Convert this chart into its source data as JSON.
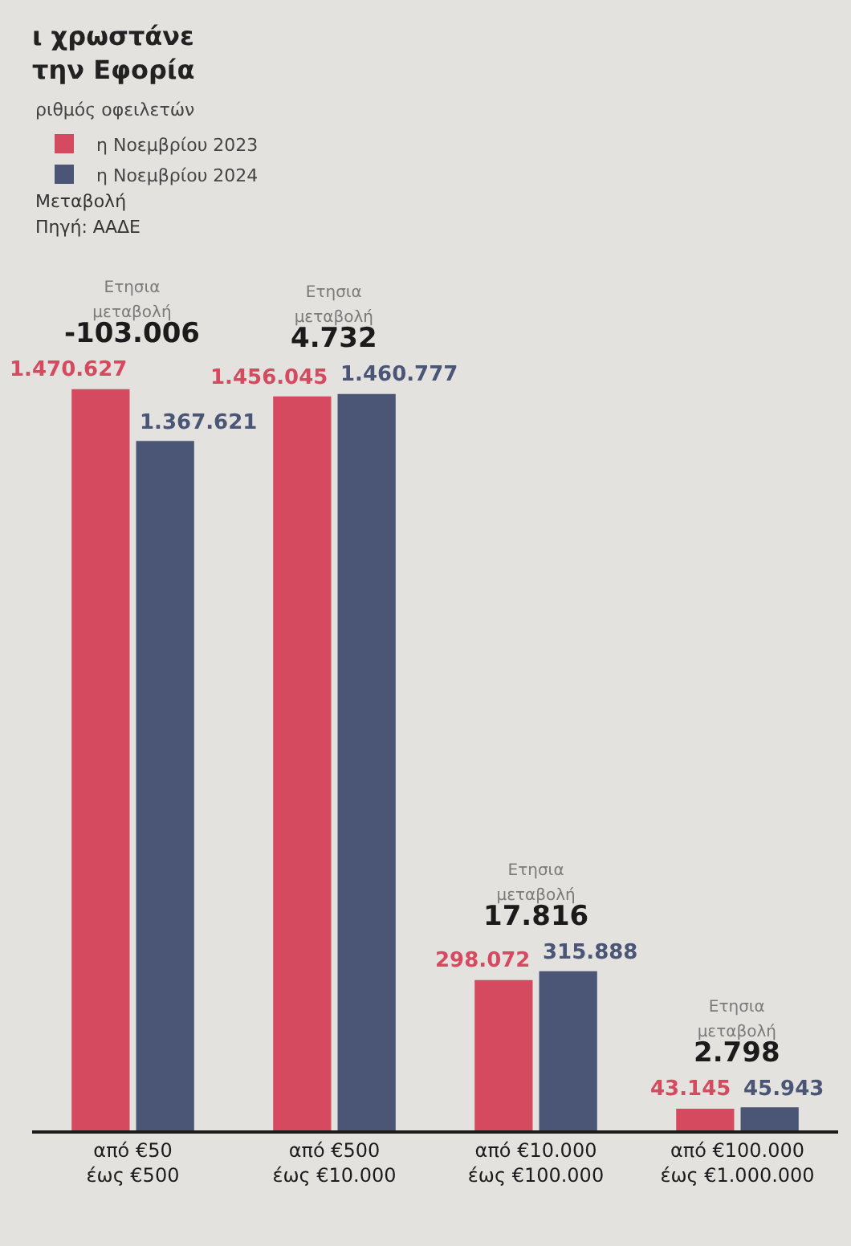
{
  "chart_data": {
    "type": "bar",
    "title": "ι χρωστάνε\nτην Εφορία",
    "subtitle": "ριθμός οφειλετών",
    "categories": [
      "από €50\nέως €500",
      "από €500\nέως €10.000",
      "από €10.000\nέως €100.000",
      "από €100.000\nέως €1.000.000"
    ],
    "series": [
      {
        "name": "η Νοεμβρίου 2023",
        "color": "#d64a5f",
        "values": [
          1470627,
          1456045,
          298072,
          43145
        ],
        "value_labels": [
          "1.470.627",
          "1.456.045",
          "298.072",
          "43.145"
        ]
      },
      {
        "name": "η Νοεμβρίου 2024",
        "color": "#4b5677",
        "values": [
          1367621,
          1460777,
          315888,
          45943
        ],
        "value_labels": [
          "1.367.621",
          "1.460.777",
          "315.888",
          "45.943"
        ]
      }
    ],
    "annotations": [
      "Μεταβολή",
      "Πηγή: ΑΑΔΕ",
      {
        "text": "Ετησια\nμεταβολή\n-103.006",
        "x": "από €50\nέως €500",
        "y": 1470627
      },
      {
        "text": "Ετησια\nμεταβολή\n4.732",
        "x": "από €500\nέως €10.000",
        "y": 1460777
      },
      {
        "text": "Ετησια\nμεταβολή\n17.816",
        "x": "από €10.000\nέως €100.000",
        "y": 315888
      },
      {
        "text": "Ετησια\nμεταβολή\n2.798",
        "x": "από €100.000\nέως €1.000.000",
        "y": 45943
      }
    ],
    "legend": "top left"
  }
}
